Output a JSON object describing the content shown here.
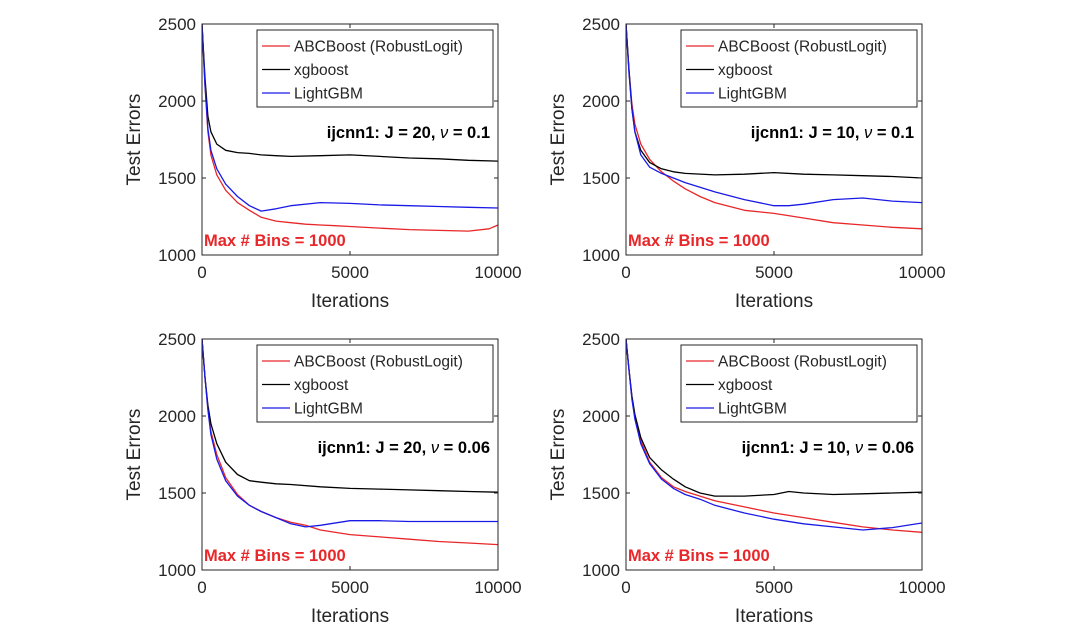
{
  "chart_data": [
    {
      "type": "line",
      "annotation_prefix": "ijcnn1: J = 20, ",
      "annotation_nu": "ν",
      "annotation_suffix": " = 0.1",
      "bins_label": "Max # Bins =  1000",
      "xlabel": "Iterations",
      "ylabel": "Test Errors",
      "xlim": [
        0,
        10000
      ],
      "ylim": [
        1000,
        2500
      ],
      "xticks": [
        "0",
        "5000",
        "10000"
      ],
      "yticks": [
        "1000",
        "1500",
        "2000",
        "2500"
      ],
      "legend_position": "top-right",
      "series": [
        {
          "name": "ABCBoost (RobustLogit)",
          "color": "#e8272a",
          "x": [
            0,
            100,
            200,
            300,
            500,
            800,
            1200,
            1600,
            2000,
            2500,
            3000,
            3500,
            4000,
            4500,
            5000,
            6000,
            7000,
            8000,
            9000,
            9700,
            10000
          ],
          "y": [
            2500,
            2100,
            1800,
            1650,
            1520,
            1420,
            1340,
            1290,
            1245,
            1220,
            1210,
            1200,
            1195,
            1190,
            1185,
            1175,
            1165,
            1160,
            1155,
            1170,
            1195
          ]
        },
        {
          "name": "xgboost",
          "color": "#000000",
          "x": [
            0,
            100,
            200,
            300,
            500,
            800,
            1200,
            1600,
            2000,
            2500,
            3000,
            4000,
            5000,
            6000,
            7000,
            8000,
            9000,
            10000
          ],
          "y": [
            2500,
            2150,
            1900,
            1800,
            1720,
            1680,
            1665,
            1660,
            1650,
            1645,
            1640,
            1645,
            1650,
            1640,
            1630,
            1625,
            1615,
            1610
          ]
        },
        {
          "name": "LightGBM",
          "color": "#1a1ae6",
          "x": [
            0,
            100,
            200,
            300,
            500,
            800,
            1200,
            1600,
            2000,
            2500,
            3000,
            4000,
            5000,
            6000,
            7000,
            8000,
            9000,
            10000
          ],
          "y": [
            2500,
            2100,
            1820,
            1680,
            1560,
            1460,
            1380,
            1320,
            1285,
            1300,
            1320,
            1340,
            1335,
            1325,
            1320,
            1315,
            1310,
            1305
          ]
        }
      ]
    },
    {
      "type": "line",
      "annotation_prefix": "ijcnn1: J = 10, ",
      "annotation_nu": "ν",
      "annotation_suffix": " = 0.1",
      "bins_label": "Max # Bins =  1000",
      "xlabel": "Iterations",
      "ylabel": "Test Errors",
      "xlim": [
        0,
        10000
      ],
      "ylim": [
        1000,
        2500
      ],
      "xticks": [
        "0",
        "5000",
        "10000"
      ],
      "yticks": [
        "1000",
        "1500",
        "2000",
        "2500"
      ],
      "legend_position": "top-right",
      "series": [
        {
          "name": "ABCBoost (RobustLogit)",
          "color": "#e8272a",
          "x": [
            0,
            100,
            200,
            300,
            500,
            800,
            1200,
            1600,
            2000,
            2500,
            3000,
            4000,
            5000,
            6000,
            7000,
            8000,
            9000,
            10000
          ],
          "y": [
            2500,
            2200,
            1980,
            1850,
            1720,
            1620,
            1540,
            1480,
            1430,
            1380,
            1340,
            1290,
            1270,
            1240,
            1210,
            1195,
            1180,
            1170
          ]
        },
        {
          "name": "xgboost",
          "color": "#000000",
          "x": [
            0,
            100,
            200,
            300,
            500,
            800,
            1200,
            1600,
            2000,
            3000,
            4000,
            5000,
            6000,
            7000,
            8000,
            9000,
            10000
          ],
          "y": [
            2500,
            2200,
            1950,
            1800,
            1680,
            1600,
            1560,
            1540,
            1530,
            1520,
            1525,
            1535,
            1525,
            1520,
            1515,
            1510,
            1500
          ]
        },
        {
          "name": "LightGBM",
          "color": "#1a1ae6",
          "x": [
            0,
            100,
            200,
            300,
            500,
            800,
            1200,
            1600,
            2000,
            2500,
            3000,
            4000,
            5000,
            5500,
            6000,
            7000,
            8000,
            9000,
            10000
          ],
          "y": [
            2500,
            2180,
            1950,
            1800,
            1650,
            1570,
            1530,
            1500,
            1470,
            1440,
            1410,
            1360,
            1320,
            1320,
            1330,
            1360,
            1370,
            1350,
            1340
          ]
        }
      ]
    },
    {
      "type": "line",
      "annotation_prefix": "ijcnn1: J = 20, ",
      "annotation_nu": "ν",
      "annotation_suffix": " = 0.06",
      "bins_label": "Max # Bins =  1000",
      "xlabel": "Iterations",
      "ylabel": "Test Errors",
      "xlim": [
        0,
        10000
      ],
      "ylim": [
        1000,
        2500
      ],
      "xticks": [
        "0",
        "5000",
        "10000"
      ],
      "yticks": [
        "1000",
        "1500",
        "2000",
        "2500"
      ],
      "legend_position": "top-right",
      "series": [
        {
          "name": "ABCBoost (RobustLogit)",
          "color": "#e8272a",
          "x": [
            0,
            100,
            200,
            300,
            500,
            800,
            1200,
            1600,
            2000,
            2500,
            3000,
            3500,
            4000,
            5000,
            6000,
            7000,
            8000,
            9000,
            10000
          ],
          "y": [
            2500,
            2250,
            2050,
            1900,
            1750,
            1600,
            1490,
            1420,
            1380,
            1340,
            1310,
            1290,
            1260,
            1230,
            1215,
            1200,
            1185,
            1175,
            1165
          ]
        },
        {
          "name": "xgboost",
          "color": "#000000",
          "x": [
            0,
            100,
            200,
            300,
            500,
            800,
            1200,
            1600,
            2000,
            2500,
            3000,
            4000,
            5000,
            6000,
            7000,
            8000,
            9000,
            10000
          ],
          "y": [
            2500,
            2250,
            2070,
            1950,
            1820,
            1700,
            1620,
            1580,
            1570,
            1560,
            1555,
            1540,
            1530,
            1525,
            1520,
            1515,
            1510,
            1505
          ]
        },
        {
          "name": "LightGBM",
          "color": "#1a1ae6",
          "x": [
            0,
            100,
            200,
            300,
            500,
            800,
            1200,
            1600,
            2000,
            2500,
            3000,
            3500,
            4000,
            5000,
            6000,
            7000,
            8000,
            9000,
            10000
          ],
          "y": [
            2500,
            2250,
            2040,
            1880,
            1720,
            1580,
            1480,
            1420,
            1380,
            1340,
            1300,
            1280,
            1290,
            1320,
            1320,
            1315,
            1315,
            1315,
            1315
          ]
        }
      ]
    },
    {
      "type": "line",
      "annotation_prefix": "ijcnn1: J = 10, ",
      "annotation_nu": "ν",
      "annotation_suffix": " = 0.06",
      "bins_label": "Max # Bins =  1000",
      "xlabel": "Iterations",
      "ylabel": "Test Errors",
      "xlim": [
        0,
        10000
      ],
      "ylim": [
        1000,
        2500
      ],
      "xticks": [
        "0",
        "5000",
        "10000"
      ],
      "yticks": [
        "1000",
        "1500",
        "2000",
        "2500"
      ],
      "legend_position": "top-right",
      "series": [
        {
          "name": "ABCBoost (RobustLogit)",
          "color": "#e8272a",
          "x": [
            0,
            100,
            200,
            300,
            500,
            800,
            1200,
            1600,
            2000,
            2500,
            3000,
            4000,
            5000,
            6000,
            7000,
            8000,
            9000,
            10000
          ],
          "y": [
            2500,
            2300,
            2120,
            2000,
            1840,
            1700,
            1600,
            1540,
            1510,
            1480,
            1450,
            1410,
            1370,
            1340,
            1310,
            1280,
            1260,
            1245
          ]
        },
        {
          "name": "xgboost",
          "color": "#000000",
          "x": [
            0,
            100,
            200,
            300,
            500,
            800,
            1200,
            1600,
            2000,
            2500,
            3000,
            4000,
            5000,
            5500,
            6000,
            7000,
            8000,
            9000,
            10000
          ],
          "y": [
            2500,
            2300,
            2130,
            2010,
            1860,
            1730,
            1650,
            1590,
            1540,
            1500,
            1480,
            1480,
            1490,
            1510,
            1500,
            1490,
            1495,
            1500,
            1505
          ]
        },
        {
          "name": "LightGBM",
          "color": "#1a1ae6",
          "x": [
            0,
            100,
            200,
            300,
            500,
            800,
            1200,
            1600,
            2000,
            2500,
            3000,
            4000,
            5000,
            6000,
            7000,
            8000,
            9000,
            10000
          ],
          "y": [
            2500,
            2300,
            2110,
            1980,
            1820,
            1690,
            1590,
            1530,
            1490,
            1460,
            1420,
            1370,
            1330,
            1300,
            1280,
            1260,
            1275,
            1305
          ]
        }
      ]
    }
  ]
}
